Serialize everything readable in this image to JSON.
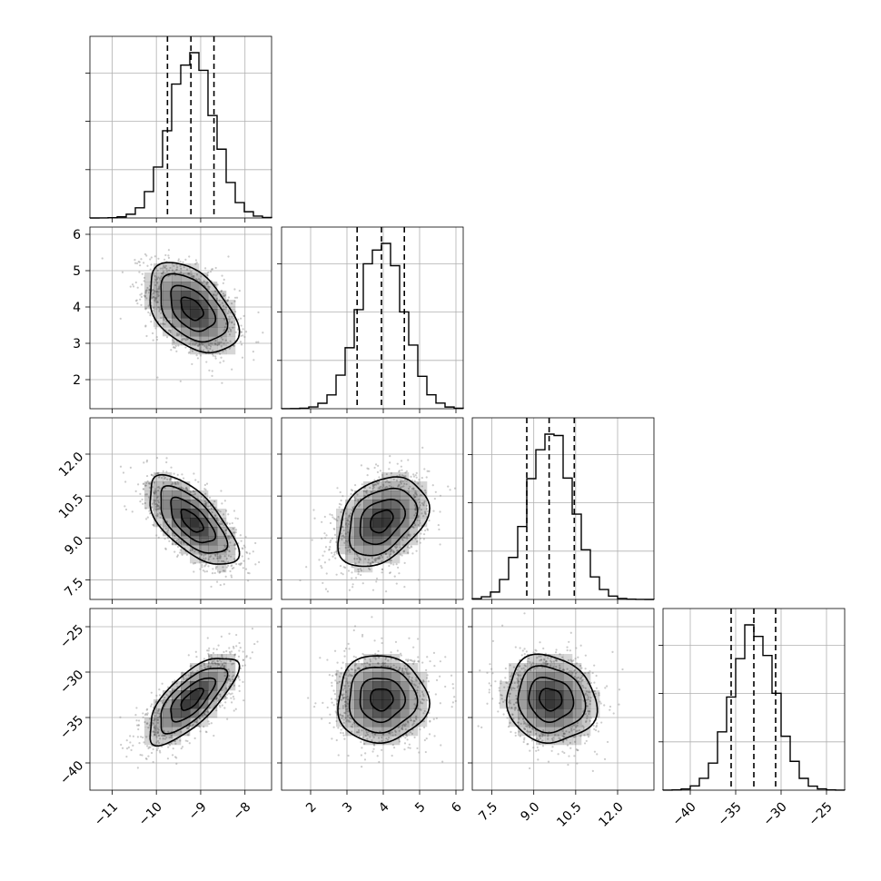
{
  "chart_data": {
    "type": "corner",
    "title": "",
    "grid": true,
    "parameters": [
      {
        "index": 0,
        "range": [
          -11.5,
          -7.4
        ],
        "ticks": [
          -11,
          -10,
          -9,
          -8
        ],
        "tick_labels": [
          "−11",
          "−10",
          "−9",
          "−8"
        ],
        "quantiles": [
          -9.75,
          -9.22,
          -8.7
        ],
        "mean": -9.2,
        "sd": 0.5
      },
      {
        "index": 1,
        "range": [
          1.2,
          6.2
        ],
        "ticks": [
          2,
          3,
          4,
          5,
          6
        ],
        "tick_labels": [
          "2",
          "3",
          "4",
          "5",
          "6"
        ],
        "quantiles": [
          3.28,
          3.95,
          4.58
        ],
        "mean": 3.95,
        "sd": 0.62
      },
      {
        "index": 2,
        "range": [
          6.8,
          13.3
        ],
        "ticks": [
          7.5,
          9.0,
          10.5,
          12.0
        ],
        "tick_labels": [
          "7.5",
          "9.0",
          "10.5",
          "12.0"
        ],
        "quantiles": [
          8.75,
          9.55,
          10.45
        ],
        "mean": 9.6,
        "sd": 0.8
      },
      {
        "index": 3,
        "range": [
          -43,
          -23
        ],
        "ticks": [
          -40,
          -35,
          -30,
          -25
        ],
        "tick_labels": [
          "−40",
          "−35",
          "−30",
          "−25"
        ],
        "quantiles": [
          -35.5,
          -33.0,
          -30.6
        ],
        "mean": -33.0,
        "sd": 2.4
      }
    ],
    "correlations": [
      {
        "x": 0,
        "y": 1,
        "rho": -0.45
      },
      {
        "x": 0,
        "y": 2,
        "rho": -0.65
      },
      {
        "x": 1,
        "y": 2,
        "rho": 0.35
      },
      {
        "x": 0,
        "y": 3,
        "rho": 0.72
      },
      {
        "x": 1,
        "y": 3,
        "rho": 0.0
      },
      {
        "x": 2,
        "y": 3,
        "rho": -0.1
      }
    ],
    "histogram_bins": 20,
    "contour_levels_sigma": [
      0.5,
      1.0,
      1.5,
      2.0
    ],
    "colors": {
      "frame": "#000000",
      "grid": "#b0b0b0",
      "points": "#8c8c8c",
      "density": "#000000",
      "quantile_line": "#000000"
    }
  }
}
